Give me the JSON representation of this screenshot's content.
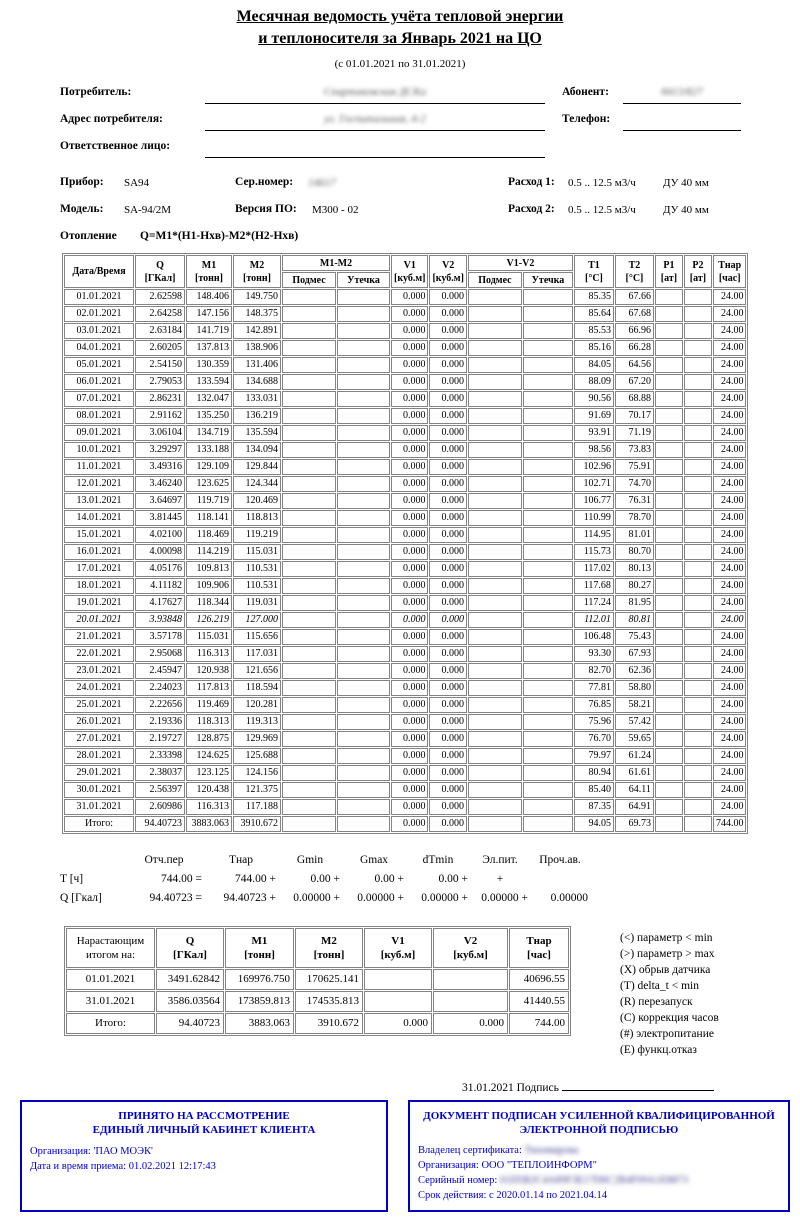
{
  "doc": {
    "title1": "Месячная ведомость учёта тепловой энергии",
    "title2": "и теплоносителя за Январь 2021 на ЦО",
    "period": "(с 01.01.2021 по 31.01.2021)"
  },
  "fields": {
    "consumer_label": "Потребитель:",
    "consumer_value_redacted": "Спартаковская ДСКа",
    "abonent_label": "Абонент:",
    "abonent_value_redacted": "8413/827",
    "address_label": "Адрес потребителя:",
    "address_value_redacted": "ул. Госпитальная, 4-2",
    "phone_label": "Телефон:",
    "responsible_label": "Ответственное лицо:"
  },
  "device": {
    "pribor_label": "Прибор:",
    "pribor": "SA94",
    "serial_label": "Сер.номер:",
    "serial_redacted": "14617",
    "flow1_label": "Расход 1:",
    "flow1": "0.5 .. 12.5 м3/ч",
    "du1": "ДУ 40 мм",
    "model_label": "Модель:",
    "model": "SA-94/2M",
    "fw_label": "Версия ПО:",
    "fw": "M300 - 02",
    "flow2_label": "Расход 2:",
    "flow2": "0.5 .. 12.5 м3/ч",
    "du2": "ДУ 40 мм",
    "mode_label": "Отопление",
    "formula": "Q=M1*(H1-Hхв)-M2*(H2-Hхв)"
  },
  "main_table": {
    "col_date": "Дата/Время",
    "cols": [
      {
        "l1": "Q",
        "l2": "[ГКал]"
      },
      {
        "l1": "M1",
        "l2": "[тонн]"
      },
      {
        "l1": "M2",
        "l2": "[тонн]"
      },
      {
        "l1": "M1-M2"
      },
      {
        "l1": "V1",
        "l2": "[куб.м]"
      },
      {
        "l1": "V2",
        "l2": "[куб.м]"
      },
      {
        "l1": "V1-V2"
      },
      {
        "l1": "T1",
        "l2": "[°C]"
      },
      {
        "l1": "T2",
        "l2": "[°C]"
      },
      {
        "l1": "P1",
        "l2": "[ат]"
      },
      {
        "l1": "P2",
        "l2": "[ат]"
      },
      {
        "l1": "Тнар",
        "l2": "[час]"
      }
    ],
    "sub": [
      "Подмес",
      "Утечка",
      "Подмес",
      "Утечка"
    ],
    "italic_rows": [
      19
    ],
    "rows": [
      [
        "01.01.2021",
        "2.62598",
        "148.406",
        "149.750",
        "",
        "",
        "0.000",
        "0.000",
        "",
        "",
        "85.35",
        "67.66",
        "",
        "",
        "24.00"
      ],
      [
        "02.01.2021",
        "2.64258",
        "147.156",
        "148.375",
        "",
        "",
        "0.000",
        "0.000",
        "",
        "",
        "85.64",
        "67.68",
        "",
        "",
        "24.00"
      ],
      [
        "03.01.2021",
        "2.63184",
        "141.719",
        "142.891",
        "",
        "",
        "0.000",
        "0.000",
        "",
        "",
        "85.53",
        "66.96",
        "",
        "",
        "24.00"
      ],
      [
        "04.01.2021",
        "2.60205",
        "137.813",
        "138.906",
        "",
        "",
        "0.000",
        "0.000",
        "",
        "",
        "85.16",
        "66.28",
        "",
        "",
        "24.00"
      ],
      [
        "05.01.2021",
        "2.54150",
        "130.359",
        "131.406",
        "",
        "",
        "0.000",
        "0.000",
        "",
        "",
        "84.05",
        "64.56",
        "",
        "",
        "24.00"
      ],
      [
        "06.01.2021",
        "2.79053",
        "133.594",
        "134.688",
        "",
        "",
        "0.000",
        "0.000",
        "",
        "",
        "88.09",
        "67.20",
        "",
        "",
        "24.00"
      ],
      [
        "07.01.2021",
        "2.86231",
        "132.047",
        "133.031",
        "",
        "",
        "0.000",
        "0.000",
        "",
        "",
        "90.56",
        "68.88",
        "",
        "",
        "24.00"
      ],
      [
        "08.01.2021",
        "2.91162",
        "135.250",
        "136.219",
        "",
        "",
        "0.000",
        "0.000",
        "",
        "",
        "91.69",
        "70.17",
        "",
        "",
        "24.00"
      ],
      [
        "09.01.2021",
        "3.06104",
        "134.719",
        "135.594",
        "",
        "",
        "0.000",
        "0.000",
        "",
        "",
        "93.91",
        "71.19",
        "",
        "",
        "24.00"
      ],
      [
        "10.01.2021",
        "3.29297",
        "133.188",
        "134.094",
        "",
        "",
        "0.000",
        "0.000",
        "",
        "",
        "98.56",
        "73.83",
        "",
        "",
        "24.00"
      ],
      [
        "11.01.2021",
        "3.49316",
        "129.109",
        "129.844",
        "",
        "",
        "0.000",
        "0.000",
        "",
        "",
        "102.96",
        "75.91",
        "",
        "",
        "24.00"
      ],
      [
        "12.01.2021",
        "3.46240",
        "123.625",
        "124.344",
        "",
        "",
        "0.000",
        "0.000",
        "",
        "",
        "102.71",
        "74.70",
        "",
        "",
        "24.00"
      ],
      [
        "13.01.2021",
        "3.64697",
        "119.719",
        "120.469",
        "",
        "",
        "0.000",
        "0.000",
        "",
        "",
        "106.77",
        "76.31",
        "",
        "",
        "24.00"
      ],
      [
        "14.01.2021",
        "3.81445",
        "118.141",
        "118.813",
        "",
        "",
        "0.000",
        "0.000",
        "",
        "",
        "110.99",
        "78.70",
        "",
        "",
        "24.00"
      ],
      [
        "15.01.2021",
        "4.02100",
        "118.469",
        "119.219",
        "",
        "",
        "0.000",
        "0.000",
        "",
        "",
        "114.95",
        "81.01",
        "",
        "",
        "24.00"
      ],
      [
        "16.01.2021",
        "4.00098",
        "114.219",
        "115.031",
        "",
        "",
        "0.000",
        "0.000",
        "",
        "",
        "115.73",
        "80.70",
        "",
        "",
        "24.00"
      ],
      [
        "17.01.2021",
        "4.05176",
        "109.813",
        "110.531",
        "",
        "",
        "0.000",
        "0.000",
        "",
        "",
        "117.02",
        "80.13",
        "",
        "",
        "24.00"
      ],
      [
        "18.01.2021",
        "4.11182",
        "109.906",
        "110.531",
        "",
        "",
        "0.000",
        "0.000",
        "",
        "",
        "117.68",
        "80.27",
        "",
        "",
        "24.00"
      ],
      [
        "19.01.2021",
        "4.17627",
        "118.344",
        "119.031",
        "",
        "",
        "0.000",
        "0.000",
        "",
        "",
        "117.24",
        "81.95",
        "",
        "",
        "24.00"
      ],
      [
        "20.01.2021",
        "3.93848",
        "126.219",
        "127.000",
        "",
        "",
        "0.000",
        "0.000",
        "",
        "",
        "112.01",
        "80.81",
        "",
        "",
        "24.00"
      ],
      [
        "21.01.2021",
        "3.57178",
        "115.031",
        "115.656",
        "",
        "",
        "0.000",
        "0.000",
        "",
        "",
        "106.48",
        "75.43",
        "",
        "",
        "24.00"
      ],
      [
        "22.01.2021",
        "2.95068",
        "116.313",
        "117.031",
        "",
        "",
        "0.000",
        "0.000",
        "",
        "",
        "93.30",
        "67.93",
        "",
        "",
        "24.00"
      ],
      [
        "23.01.2021",
        "2.45947",
        "120.938",
        "121.656",
        "",
        "",
        "0.000",
        "0.000",
        "",
        "",
        "82.70",
        "62.36",
        "",
        "",
        "24.00"
      ],
      [
        "24.01.2021",
        "2.24023",
        "117.813",
        "118.594",
        "",
        "",
        "0.000",
        "0.000",
        "",
        "",
        "77.81",
        "58.80",
        "",
        "",
        "24.00"
      ],
      [
        "25.01.2021",
        "2.22656",
        "119.469",
        "120.281",
        "",
        "",
        "0.000",
        "0.000",
        "",
        "",
        "76.85",
        "58.21",
        "",
        "",
        "24.00"
      ],
      [
        "26.01.2021",
        "2.19336",
        "118.313",
        "119.313",
        "",
        "",
        "0.000",
        "0.000",
        "",
        "",
        "75.96",
        "57.42",
        "",
        "",
        "24.00"
      ],
      [
        "27.01.2021",
        "2.19727",
        "128.875",
        "129.969",
        "",
        "",
        "0.000",
        "0.000",
        "",
        "",
        "76.70",
        "59.65",
        "",
        "",
        "24.00"
      ],
      [
        "28.01.2021",
        "2.33398",
        "124.625",
        "125.688",
        "",
        "",
        "0.000",
        "0.000",
        "",
        "",
        "79.97",
        "61.24",
        "",
        "",
        "24.00"
      ],
      [
        "29.01.2021",
        "2.38037",
        "123.125",
        "124.156",
        "",
        "",
        "0.000",
        "0.000",
        "",
        "",
        "80.94",
        "61.61",
        "",
        "",
        "24.00"
      ],
      [
        "30.01.2021",
        "2.56397",
        "120.438",
        "121.375",
        "",
        "",
        "0.000",
        "0.000",
        "",
        "",
        "85.40",
        "64.11",
        "",
        "",
        "24.00"
      ],
      [
        "31.01.2021",
        "2.60986",
        "116.313",
        "117.188",
        "",
        "",
        "0.000",
        "0.000",
        "",
        "",
        "87.35",
        "64.91",
        "",
        "",
        "24.00"
      ],
      [
        "Итого:",
        "94.40723",
        "3883.063",
        "3910.672",
        "",
        "",
        "0.000",
        "0.000",
        "",
        "",
        "94.05",
        "69.73",
        "",
        "",
        "744.00"
      ]
    ]
  },
  "summary": {
    "headers": [
      "Отч.пер",
      "Тнар",
      "Gmin",
      "Gmax",
      "dTmin",
      "Эл.пит.",
      "Проч.ав."
    ],
    "t_label": "T [ч]",
    "t": [
      "744.00 =",
      "744.00 +",
      "0.00 +",
      "0.00 +",
      "0.00 +",
      "+",
      ""
    ],
    "q_label": "Q [Гкал]",
    "q": [
      "94.40723 =",
      "94.40723 +",
      "0.00000 +",
      "0.00000 +",
      "0.00000 +",
      "0.00000 +",
      "0.00000"
    ]
  },
  "cumulative": {
    "col1_l1": "Нарастающим",
    "col1_l2": "итогом на:",
    "cols": [
      {
        "l1": "Q",
        "l2": "[ГКал]"
      },
      {
        "l1": "M1",
        "l2": "[тонн]"
      },
      {
        "l1": "M2",
        "l2": "[тонн]"
      },
      {
        "l1": "V1",
        "l2": "[куб.м]"
      },
      {
        "l1": "V2",
        "l2": "[куб.м]"
      },
      {
        "l1": "Тнар",
        "l2": "[час]"
      }
    ],
    "rows": [
      [
        "01.01.2021",
        "3491.62842",
        "169976.750",
        "170625.141",
        "",
        "",
        "40696.55"
      ],
      [
        "31.01.2021",
        "3586.03564",
        "173859.813",
        "174535.813",
        "",
        "",
        "41440.55"
      ],
      [
        "Итого:",
        "94.40723",
        "3883.063",
        "3910.672",
        "0.000",
        "0.000",
        "744.00"
      ]
    ]
  },
  "legend": {
    "items": [
      "(<)  параметр < min",
      "(>)  параметр > max",
      "(X)  обрыв датчика",
      "(T)  delta_t < min",
      "(R)  перезапуск",
      "(C)  коррекция часов",
      "(#)  электропитание",
      "(E)  функц.отказ"
    ]
  },
  "signature": {
    "text": "31.01.2021 Подпись"
  },
  "box_left": {
    "title1": "ПРИНЯТО НА РАССМОТРЕНИЕ",
    "title2": "ЕДИНЫЙ ЛИЧНЫЙ КАБИНЕТ КЛИЕНТА",
    "org": "Организация: 'ПАО МОЭК'",
    "received": "Дата и время приема: 01.02.2021 12:17:43"
  },
  "box_right": {
    "title1": "ДОКУМЕНТ ПОДПИСАН УСИЛЕННОЙ КВАЛИФИЦИРОВАННОЙ",
    "title2": "ЭЛЕКТРОННОЙ ПОДПИСЬЮ",
    "owner_label": "Владелец сертификата:",
    "owner_redacted": "Тихомирова",
    "org": "Организация: ООО \"ТЕПЛОИНФОРМ\"",
    "serial_label": "Серийный номер:",
    "serial_redacted": "01D5B2C4A89F3E17D6C2B4F09A1E8873",
    "validity": "Срок действия: с 2020.01.14 по 2021.04.14"
  },
  "colors": {
    "blue": "#0000c0",
    "grid": "#848484"
  }
}
